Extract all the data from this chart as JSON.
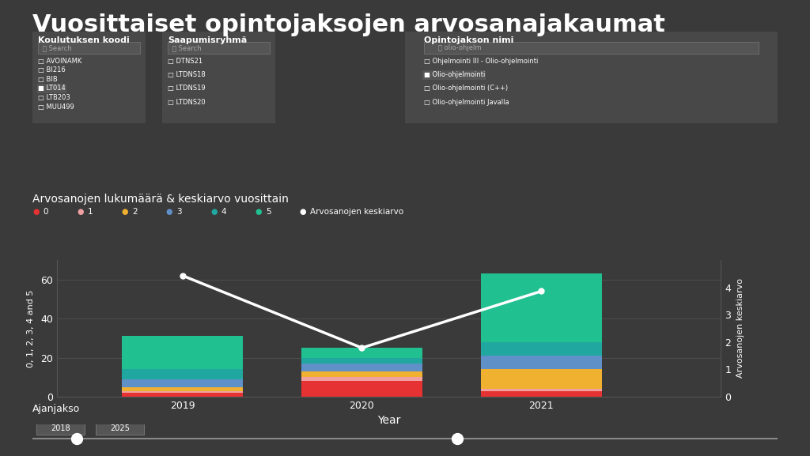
{
  "title": "Vuosittaiset opintojaksojen arvosanajakaumat",
  "subtitle": "Arvosanojen lukumäärä & keskiarvo vuosittain",
  "xlabel": "Year",
  "ylabel_left": "0, 1, 2, 3, 4 and 5",
  "ylabel_right": "Arvosanojen keskiarvo",
  "background_color": "#3a3a3a",
  "text_color": "#ffffff",
  "grid_color": "#555555",
  "years": [
    2019,
    2020,
    2021
  ],
  "grades": [
    "0",
    "1",
    "2",
    "3",
    "4",
    "5"
  ],
  "grade_colors": [
    "#e63232",
    "#f0a0a0",
    "#f0b030",
    "#6090c8",
    "#20a8a0",
    "#20c090"
  ],
  "bars": {
    "2019": [
      2,
      1,
      2,
      4,
      5,
      17
    ],
    "2020": [
      8,
      2,
      3,
      4,
      3,
      5
    ],
    "2021": [
      3,
      1,
      10,
      7,
      7,
      35
    ]
  },
  "line_values": [
    62,
    25,
    54
  ],
  "line_color": "#ffffff",
  "ylim_left": [
    0,
    70
  ],
  "ylim_right": [
    0,
    5
  ],
  "legend_labels": [
    "0",
    "1",
    "2",
    "3",
    "4",
    "5",
    "Arvosanojen keskiarvo"
  ],
  "legend_colors": [
    "#e63232",
    "#f0a0a0",
    "#f0b030",
    "#6090c8",
    "#20a8a0",
    "#20c090",
    "#ffffff"
  ],
  "filter_labels": {
    "koulutus": "Koulutuksen koodi",
    "saapumis": "Saapumisryhmä",
    "opinto": "Opintojakson nimi"
  },
  "koulutus_items": [
    "AVOINAMK",
    "BI216",
    "BIB",
    "LT014",
    "LTB203",
    "MUU499"
  ],
  "saapumis_items": [
    "DTNS21",
    "LTDNS18",
    "LTDNS19",
    "LTDNS20"
  ],
  "opinto_items": [
    "Ohjelmointi III - Olio-ohjelmointi",
    "Olio-ohjelmointi",
    "Olio-ohjelmointi (C++)",
    "Olio-ohjelmointi Javalla"
  ],
  "opinto_search": "olio-ohjelm",
  "ajanjakso_label": "Ajanjakso",
  "ajanjakso_values": [
    "2018",
    "2025"
  ],
  "title_fontsize": 22,
  "axis_label_fontsize": 10,
  "tick_fontsize": 9
}
